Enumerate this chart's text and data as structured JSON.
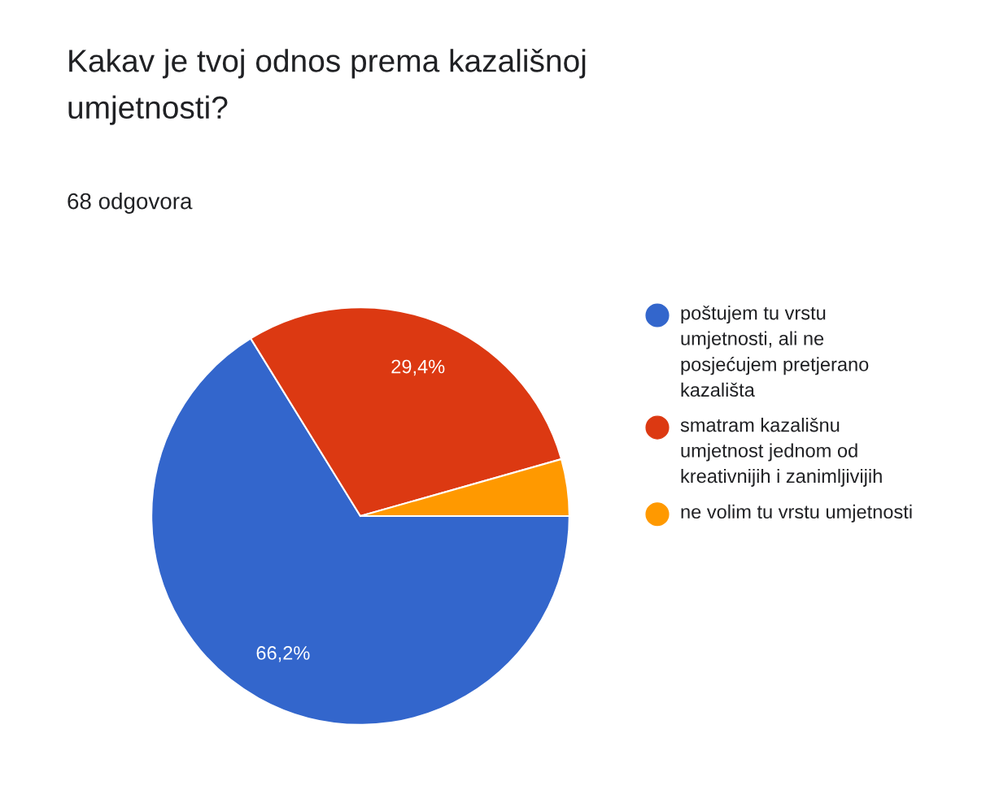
{
  "chart_data": {
    "type": "pie",
    "title": "Kakav je tvoj odnos prema kazališnoj umjetnosti?",
    "subtitle": "68 odgovora",
    "categories": [
      "poštujem tu vrstu umjetnosti, ali ne posjećujem pretjerano kazališta",
      "smatram kazališnu umjetnost jednom od kreativnijih i zanimljivijih",
      "ne volim tu vrstu umjetnosti"
    ],
    "values": [
      66.2,
      29.4,
      4.4
    ],
    "colors": [
      "#3366cc",
      "#dc3912",
      "#ff9900"
    ],
    "value_labels": [
      "66,2%",
      "29,4%",
      null
    ],
    "legend": "right"
  }
}
